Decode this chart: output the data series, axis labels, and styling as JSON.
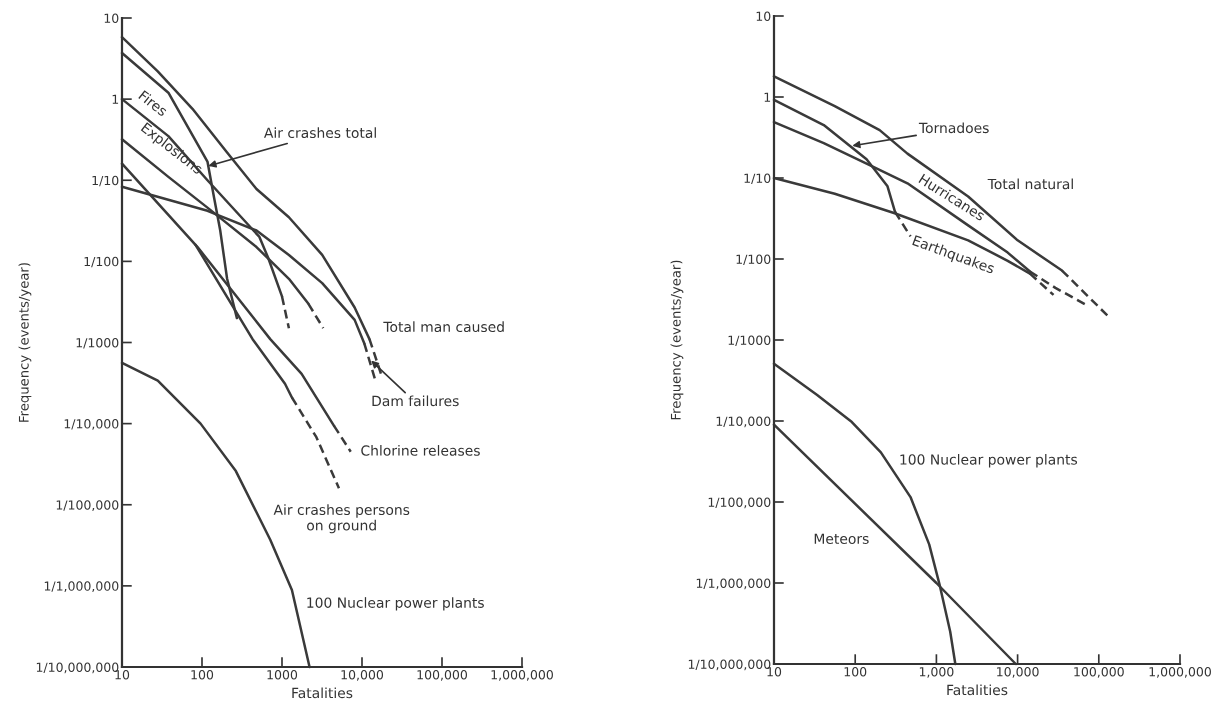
{
  "chart_data": [
    {
      "type": "line",
      "xlabel": "Fatalities",
      "ylabel": "Frequency (events/year)",
      "log": "xy",
      "grid": false,
      "legend": false,
      "marker": "none",
      "xlim": [
        10,
        1000000
      ],
      "ylim": [
        1e-07,
        10
      ],
      "xticks": [
        10,
        100,
        1000,
        {
          "value": 10000,
          "label": "10,000"
        },
        {
          "value": 100000,
          "label": "100,000"
        },
        {
          "value": 1000000,
          "label": "1,000,000"
        }
      ],
      "yticks": [
        {
          "value": 1e-07,
          "label": "1/10,000,000"
        },
        {
          "value": 1e-06,
          "label": "1/1,000,000"
        },
        {
          "value": 1e-05,
          "label": "1/100,000"
        },
        {
          "value": 0.0001,
          "label": "1/10,000"
        },
        {
          "value": 0.001,
          "label": "1/1000"
        },
        {
          "value": 0.01,
          "label": "1/100"
        },
        {
          "value": 0.1,
          "label": "1/10"
        },
        1,
        10
      ],
      "series": [
        {
          "color": "#3a3a3a",
          "line_style": "solid",
          "x": [
            10,
            28,
            76,
            206,
            480,
            1220,
            3180,
            8090,
            12400
          ],
          "values": [
            5.8,
            2.2,
            0.76,
            0.22,
            0.078,
            0.035,
            0.012,
            0.0027,
            0.0011
          ]
        },
        {
          "color": "#3a3a3a",
          "line_style": "dashed",
          "x": [
            12400,
            17300
          ],
          "values": [
            0.0011,
            0.00041
          ]
        },
        {
          "color": "#3a3a3a",
          "line_style": "solid",
          "x": [
            10,
            38,
            117,
            142,
            169,
            206,
            273
          ],
          "values": [
            3.7,
            1.2,
            0.17,
            0.06,
            0.024,
            0.0061,
            0.002
          ]
        },
        {
          "color": "#3a3a3a",
          "line_style": "solid",
          "x": [
            10,
            38,
            117,
            522,
            673,
            1000
          ],
          "values": [
            1.0,
            0.35,
            0.1,
            0.02,
            0.011,
            0.0037
          ]
        },
        {
          "color": "#3a3a3a",
          "line_style": "dashed",
          "x": [
            1000,
            1220
          ],
          "values": [
            0.0037,
            0.0015
          ]
        },
        {
          "color": "#3a3a3a",
          "line_style": "solid",
          "x": [
            10,
            38,
            117,
            480,
            1220,
            2140
          ],
          "values": [
            0.32,
            0.11,
            0.046,
            0.015,
            0.0061,
            0.003
          ]
        },
        {
          "color": "#3a3a3a",
          "line_style": "dashed",
          "x": [
            2140,
            3280
          ],
          "values": [
            0.003,
            0.0015
          ]
        },
        {
          "color": "#3a3a3a",
          "line_style": "solid",
          "x": [
            10,
            117,
            480,
            1220,
            3180,
            8090,
            10700
          ],
          "values": [
            0.083,
            0.042,
            0.024,
            0.012,
            0.0054,
            0.0019,
            0.00097
          ]
        },
        {
          "color": "#3a3a3a",
          "line_style": "dashed",
          "x": [
            10700,
            14700
          ],
          "values": [
            0.00097,
            0.00034
          ]
        },
        {
          "color": "#3a3a3a",
          "line_style": "solid",
          "x": [
            10,
            88,
            713,
            1760,
            4470
          ],
          "values": [
            0.16,
            0.015,
            0.0011,
            0.00041,
            9.4e-05
          ]
        },
        {
          "color": "#3a3a3a",
          "line_style": "dashed",
          "x": [
            4470,
            7230
          ],
          "values": [
            9.4e-05,
            4.5e-05
          ]
        },
        {
          "color": "#3a3a3a",
          "line_style": "solid",
          "x": [
            83,
            429,
            1090,
            1330
          ],
          "values": [
            0.016,
            0.0011,
            0.00031,
            0.00021
          ]
        },
        {
          "color": "#3a3a3a",
          "line_style": "dashed",
          "x": [
            1330,
            2690,
            5150
          ],
          "values": [
            0.00021,
            6.8e-05,
            1.6e-05
          ]
        },
        {
          "color": "#3a3a3a",
          "line_style": "solid",
          "x": [
            10,
            28,
            96,
            265,
            713,
            1330,
            2210
          ],
          "values": [
            0.00056,
            0.00034,
            0.0001,
            2.6e-05,
            3.7e-06,
            8.9e-07,
            1e-07
          ]
        }
      ],
      "annotations": [
        {
          "text": "Fires",
          "x": 28,
          "y": 0.5
        },
        {
          "text": "Explosions",
          "x": 38,
          "y": 0.11
        },
        {
          "text": "Air crashes total",
          "x": 120,
          "y": 0.15
        },
        {
          "text": "Total man caused",
          "x": 12400,
          "y": 0.0011
        },
        {
          "text": "Dam failures",
          "x": 13000,
          "y": 0.0006
        },
        {
          "text": "Chlorine releases",
          "x": 7230,
          "y": 4.5e-05
        },
        {
          "text": "Air crashes persons\non ground",
          "x": 5150,
          "y": 1.6e-05
        },
        {
          "text": "100 Nuclear power plants",
          "x": 1330,
          "y": 8.9e-07
        }
      ]
    },
    {
      "type": "line",
      "xlabel": "Fatalities",
      "ylabel": "Frequency (events/year)",
      "log": "xy",
      "grid": false,
      "legend": false,
      "marker": "none",
      "xlim": [
        10,
        1000000
      ],
      "ylim": [
        1e-07,
        10
      ],
      "xticks": [
        10,
        100,
        {
          "value": 1000,
          "label": "1,000"
        },
        {
          "value": 10000,
          "label": "10,000"
        },
        {
          "value": 100000,
          "label": "100,000"
        },
        {
          "value": 1000000,
          "label": "1,000,000"
        }
      ],
      "yticks": [
        {
          "value": 1e-07,
          "label": "1/10,000,000"
        },
        {
          "value": 1e-06,
          "label": "1/1,000,000"
        },
        {
          "value": 1e-05,
          "label": "1/100,000"
        },
        {
          "value": 0.0001,
          "label": "1/10,000"
        },
        {
          "value": 0.001,
          "label": "1/1000"
        },
        {
          "value": 0.01,
          "label": "1/100"
        },
        {
          "value": 0.1,
          "label": "1/10"
        },
        1,
        10
      ],
      "series": [
        {
          "color": "#3a3a3a",
          "line_style": "solid",
          "x": [
            10,
            56,
            200,
            440,
            2460,
            10000,
            35200
          ],
          "values": [
            1.8,
            0.77,
            0.39,
            0.2,
            0.059,
            0.017,
            0.0072
          ]
        },
        {
          "color": "#3a3a3a",
          "line_style": "dashed",
          "x": [
            35200,
            128000
          ],
          "values": [
            0.0072,
            0.002
          ]
        },
        {
          "color": "#3a3a3a",
          "line_style": "solid",
          "x": [
            10,
            41,
            138,
            250,
            310
          ],
          "values": [
            0.92,
            0.45,
            0.17,
            0.079,
            0.038
          ]
        },
        {
          "color": "#3a3a3a",
          "line_style": "dashed",
          "x": [
            310,
            480
          ],
          "values": [
            0.038,
            0.019
          ]
        },
        {
          "color": "#3a3a3a",
          "line_style": "solid",
          "x": [
            10,
            41,
            160,
            440,
            2460,
            7550,
            14200
          ],
          "values": [
            0.49,
            0.27,
            0.14,
            0.086,
            0.026,
            0.012,
            0.007
          ]
        },
        {
          "color": "#3a3a3a",
          "line_style": "dashed",
          "x": [
            14200,
            29200,
            70600
          ],
          "values": [
            0.007,
            0.0044,
            0.0027
          ]
        },
        {
          "color": "#3a3a3a",
          "line_style": "solid",
          "x": [
            10,
            56,
            300,
            2460,
            7550,
            14200
          ],
          "values": [
            0.1,
            0.064,
            0.037,
            0.017,
            0.0095,
            0.0066
          ]
        },
        {
          "color": "#3a3a3a",
          "line_style": "dashed",
          "x": [
            14200,
            27700
          ],
          "values": [
            0.0066,
            0.0036
          ]
        },
        {
          "color": "#3a3a3a",
          "line_style": "solid",
          "x": [
            10,
            34,
            91,
            207,
            480,
            815,
            1090,
            1480,
            1710
          ],
          "values": [
            0.00051,
            0.00021,
            9.7e-05,
            4.1e-05,
            1.15e-05,
            3e-06,
            9.7e-07,
            2.5e-07,
            1e-07
          ]
        },
        {
          "color": "#3a3a3a",
          "line_style": "solid",
          "x": [
            10,
            1000,
            9500
          ],
          "values": [
            9e-05,
            1e-06,
            1e-07
          ]
        }
      ],
      "annotations": [
        {
          "text": "Tornadoes",
          "x": 92,
          "y": 0.25
        },
        {
          "text": "Hurricanes",
          "x": 1520,
          "y": 0.035
        },
        {
          "text": "Total natural",
          "x": 3960,
          "y": 0.045
        },
        {
          "text": "Earthquakes",
          "x": 1600,
          "y": 0.02
        },
        {
          "text": "100 Nuclear power plants",
          "x": 207,
          "y": 4.1e-05
        },
        {
          "text": "Meteors",
          "x": 290,
          "y": 3.4e-06
        }
      ]
    }
  ]
}
